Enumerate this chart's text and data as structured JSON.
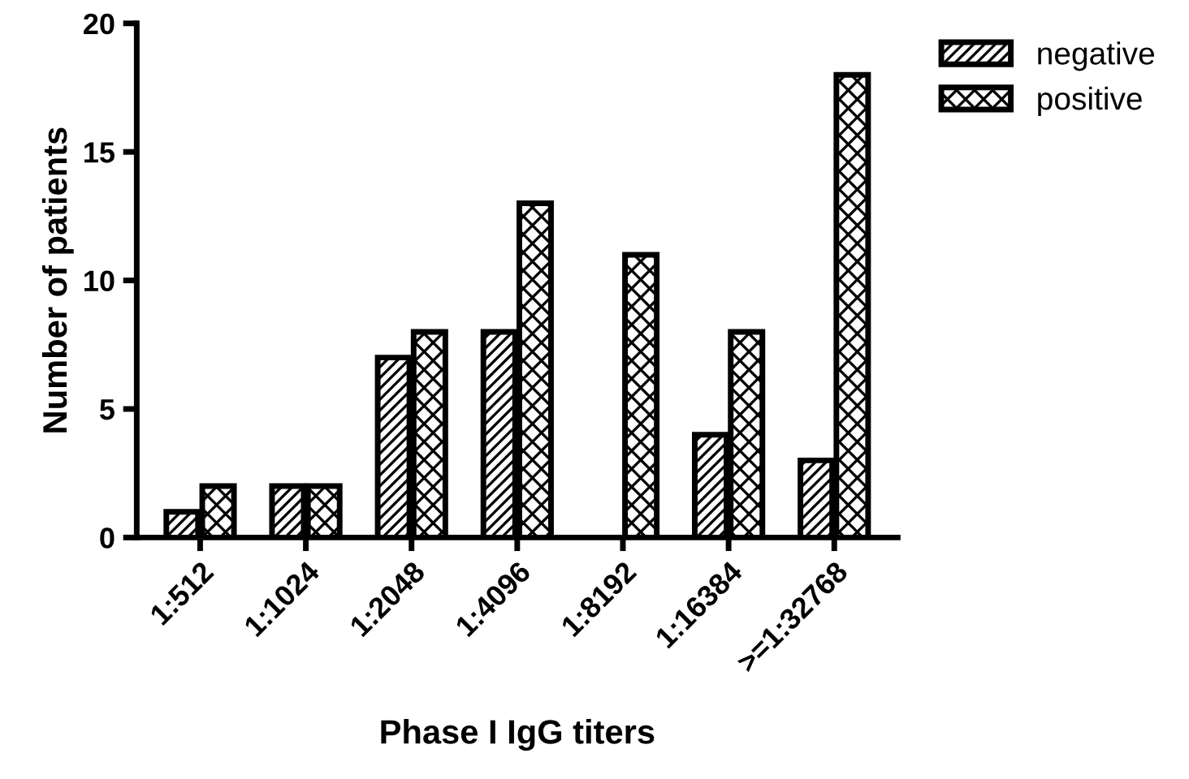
{
  "chart_data": {
    "type": "bar",
    "xlabel": "Phase I IgG titers",
    "ylabel": "Number of patients",
    "categories": [
      "1:512",
      "1:1024",
      "1:2048",
      "1:4096",
      "1:8192",
      "1:16384",
      ">=1:32768"
    ],
    "series": [
      {
        "name": "negative",
        "color": "#000000",
        "values": [
          1,
          2,
          7,
          8,
          0,
          4,
          3
        ]
      },
      {
        "name": "positive",
        "color": "#000000",
        "values": [
          2,
          2,
          8,
          13,
          11,
          8,
          18
        ]
      }
    ],
    "ylim": [
      0,
      20
    ],
    "yticks": [
      0,
      5,
      10,
      15,
      20
    ],
    "grid": false,
    "legend": "top right"
  }
}
